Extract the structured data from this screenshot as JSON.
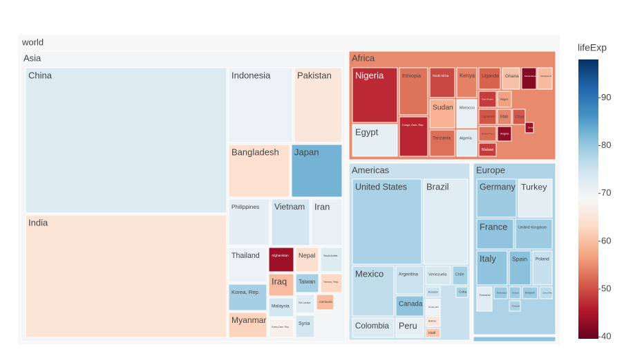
{
  "chart_data": {
    "type": "treemap",
    "root": "world",
    "color_title": "lifeExp",
    "clim": [
      39.6,
      98
    ],
    "cticks": [
      40,
      50,
      60,
      70,
      80,
      90
    ],
    "colorscale": [
      "#67001f",
      "#b2182b",
      "#d6604d",
      "#f4a582",
      "#fddbc7",
      "#f7f7f7",
      "#d1e5f0",
      "#92c5de",
      "#4393c3",
      "#2166ac",
      "#053061"
    ],
    "groups": [
      {
        "name": "Asia",
        "value": 69.4,
        "labels": [
          "China",
          "India",
          "Indonesia",
          "Pakistan",
          "Bangladesh",
          "Japan",
          "Philippines",
          "Vietnam",
          "Iran",
          "Thailand",
          "Afghanistan",
          "Nepal",
          "Saudi Arabia",
          "Iraq",
          "Taiwan",
          "Yemen, Rep.",
          "Korea, Rep.",
          "Malaysia",
          "Sri Lanka",
          "Cambodia",
          "Myanmar",
          "Korea, Dem. Rep.",
          "Syria"
        ],
        "values": [
          72.961,
          64.698,
          70.65,
          65.483,
          64.062,
          82.603,
          71.688,
          74.249,
          70.964,
          70.616,
          43.828,
          63.785,
          72.777,
          59.545,
          78.4,
          62.698,
          78.623,
          74.241,
          72.396,
          59.723,
          62.069,
          67.297,
          74.143
        ]
      },
      {
        "name": "Africa",
        "value": 54.8,
        "labels": [
          "Nigeria",
          "Egypt",
          "Ethiopia",
          "Congo, Dem. Rep.",
          "South Africa",
          "Sudan",
          "Tanzania",
          "Kenya",
          "Morocco",
          "Algeria",
          "Uganda",
          "Ghana",
          "Mozambique",
          "Madagascar",
          "Cote d'Ivoire",
          "Niger",
          "Cameroon",
          "Mali",
          "Chad",
          "Burkina Faso",
          "Angola",
          "Malawi",
          "Zimbabwe"
        ],
        "values": [
          46.859,
          71.338,
          52.947,
          46.462,
          49.339,
          58.556,
          52.517,
          54.11,
          71.164,
          72.301,
          51.542,
          60.022,
          42.082,
          59.443,
          48.328,
          56.867,
          50.43,
          54.467,
          50.651,
          52.295,
          42.731,
          48.303,
          43.487
        ]
      },
      {
        "name": "Americas",
        "value": 75.4,
        "labels": [
          "United States",
          "Brazil",
          "Mexico",
          "Colombia",
          "Argentina",
          "Canada",
          "Peru",
          "Venezuela",
          "Chile",
          "Ecuador",
          "Cuba",
          "Guatemala",
          "Bolivia",
          "Haiti"
        ],
        "values": [
          78.242,
          72.39,
          76.195,
          72.889,
          75.32,
          80.653,
          71.421,
          73.747,
          78.553,
          74.994,
          78.273,
          70.259,
          65.554,
          60.916
        ]
      },
      {
        "name": "Europe",
        "value": 77.9,
        "labels": [
          "Germany",
          "Turkey",
          "France",
          "United Kingdom",
          "Italy",
          "Spain",
          "Poland",
          "Romania",
          "Netherlands",
          "Greece",
          "Portugal",
          "Belgium",
          "Czech Republic"
        ],
        "values": [
          79.406,
          71.777,
          80.657,
          79.425,
          80.546,
          80.941,
          75.563,
          72.476,
          79.762,
          79.483,
          78.098,
          79.441,
          76.486
        ]
      },
      {
        "name": null,
        "value": 80.7,
        "labels": [],
        "values": []
      }
    ]
  }
}
